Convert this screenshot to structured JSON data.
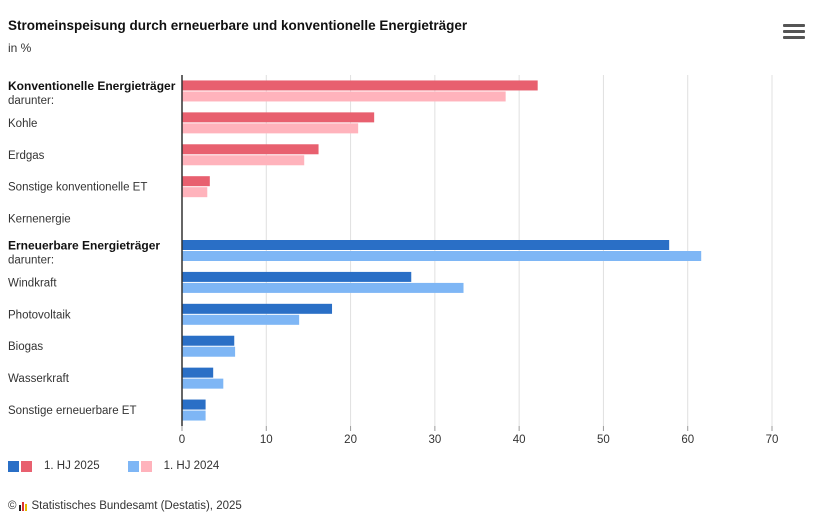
{
  "header": {
    "title": "Stromeinspeisung durch erneuerbare und konventionelle Energieträger",
    "unit": "in %"
  },
  "legend": {
    "series1_label": "1. HJ 2025",
    "series2_label": "1. HJ 2024"
  },
  "footer": {
    "copyright_symbol": "©",
    "source": "Statistisches Bundesamt (Destatis), 2025"
  },
  "colors": {
    "conv_2025": "#e8606f",
    "conv_2024": "#ffb3bc",
    "ren_2025": "#2a6fc6",
    "ren_2024": "#7eb6f5",
    "grid": "#e0e0e0",
    "axis": "#333333"
  },
  "chart_data": {
    "type": "bar",
    "orientation": "horizontal",
    "title": "Stromeinspeisung durch erneuerbare und konventionelle Energieträger",
    "subtitle": "in %",
    "categories": [
      {
        "label": "Konventionelle Energieträger",
        "sublabel": "darunter:",
        "bold": true,
        "group": "konventionell"
      },
      {
        "label": "Kohle",
        "group": "konventionell"
      },
      {
        "label": "Erdgas",
        "group": "konventionell"
      },
      {
        "label": "Sonstige konventionelle ET",
        "group": "konventionell"
      },
      {
        "label": "Kernenergie",
        "group": "konventionell"
      },
      {
        "label": "Erneuerbare Energieträger",
        "sublabel": "darunter:",
        "bold": true,
        "group": "erneuerbar"
      },
      {
        "label": "Windkraft",
        "group": "erneuerbar"
      },
      {
        "label": "Photovoltaik",
        "group": "erneuerbar"
      },
      {
        "label": "Biogas",
        "group": "erneuerbar"
      },
      {
        "label": "Wasserkraft",
        "group": "erneuerbar"
      },
      {
        "label": "Sonstige erneuerbare ET",
        "group": "erneuerbar"
      }
    ],
    "series": [
      {
        "name": "1. HJ 2025",
        "values": [
          42.2,
          22.8,
          16.2,
          3.3,
          0.0,
          57.8,
          27.2,
          17.8,
          6.2,
          3.7,
          2.8
        ]
      },
      {
        "name": "1. HJ 2024",
        "values": [
          38.4,
          20.9,
          14.5,
          3.0,
          0.0,
          61.6,
          33.4,
          13.9,
          6.3,
          4.9,
          2.8
        ]
      }
    ],
    "xlim": [
      0,
      70
    ],
    "xticks": [
      0,
      10,
      20,
      30,
      40,
      50,
      60,
      70
    ],
    "xlabel": "",
    "ylabel": "",
    "grid": true,
    "legend_position": "bottom-left"
  }
}
